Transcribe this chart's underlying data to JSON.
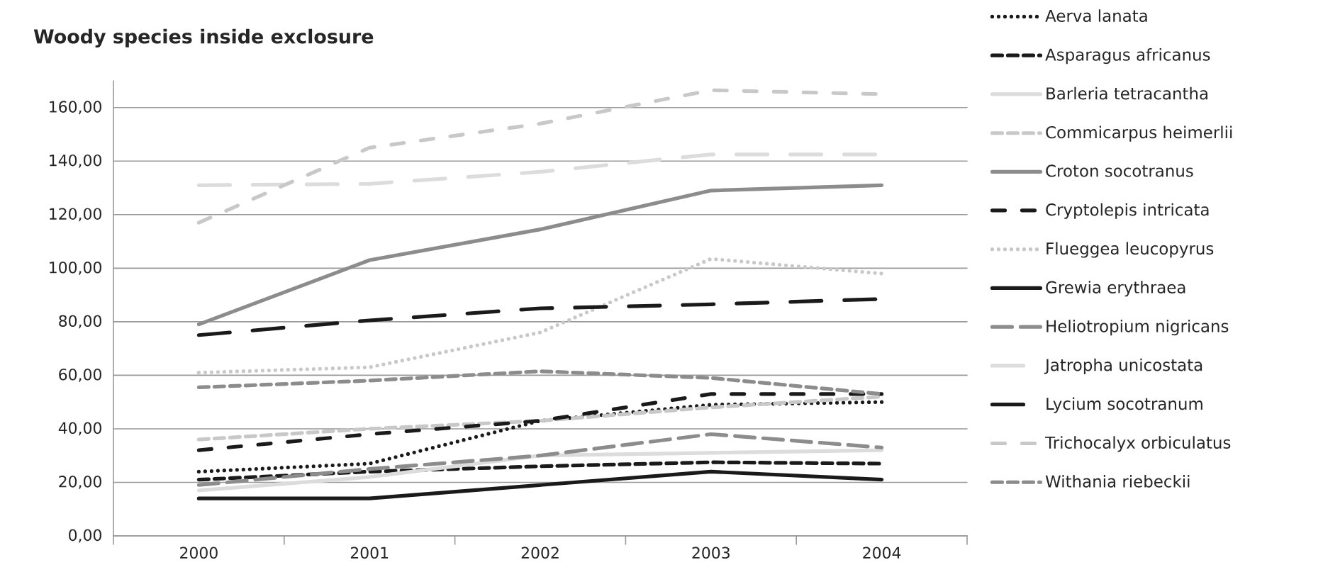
{
  "chart_data": {
    "type": "line",
    "title": "Woody species inside exclosure",
    "categories": [
      "2000",
      "2001",
      "2002",
      "2003",
      "2004"
    ],
    "ylim": [
      0,
      170
    ],
    "yticks": [
      {
        "value": 0,
        "label": "0,00"
      },
      {
        "value": 20,
        "label": "20,00"
      },
      {
        "value": 40,
        "label": "40,00"
      },
      {
        "value": 60,
        "label": "60,00"
      },
      {
        "value": 80,
        "label": "80,00"
      },
      {
        "value": 100,
        "label": "100,00"
      },
      {
        "value": 120,
        "label": "120,00"
      },
      {
        "value": 140,
        "label": "140,00"
      },
      {
        "value": 160,
        "label": "160,00"
      }
    ],
    "grid": "y",
    "legend": "right",
    "marker": "none",
    "series": [
      {
        "name": "Aerva lanata",
        "color": "#1a1a1a",
        "line_style": "dotted",
        "values": [
          24,
          27,
          43,
          49,
          50
        ]
      },
      {
        "name": "Asparagus africanus",
        "color": "#1a1a1a",
        "line_style": "dashed",
        "values": [
          21,
          24,
          26,
          27.5,
          27
        ]
      },
      {
        "name": "Barleria tetracantha",
        "color": "#dcdcdc",
        "line_style": "solid",
        "values": [
          17,
          22,
          30,
          31,
          32
        ]
      },
      {
        "name": "Commicarpus heimerlii",
        "color": "#c8c8c8",
        "line_style": "dashed",
        "values": [
          36,
          40,
          43,
          48,
          52
        ]
      },
      {
        "name": "Croton socotranus",
        "color": "#8c8c8c",
        "line_style": "solid",
        "values": [
          79,
          103,
          114.5,
          129,
          131
        ]
      },
      {
        "name": "Cryptolepis intricata",
        "color": "#1a1a1a",
        "line_style": "dashdot",
        "values": [
          32,
          38,
          43,
          53,
          53
        ]
      },
      {
        "name": "Flueggea leucopyrus",
        "color": "#c8c8c8",
        "line_style": "dotted",
        "values": [
          61,
          63,
          76,
          103.5,
          98
        ]
      },
      {
        "name": "Grewia erythraea",
        "color": "#1a1a1a",
        "line_style": "solid",
        "values": [
          14,
          14,
          19,
          24,
          21
        ]
      },
      {
        "name": "Heliotropium nigricans",
        "color": "#8c8c8c",
        "line_style": "longdash",
        "values": [
          19,
          25,
          30,
          38,
          33
        ]
      },
      {
        "name": "Jatropha unicostata",
        "color": "#dcdcdc",
        "line_style": "longdashdot",
        "values": [
          131,
          131.5,
          136,
          142.5,
          142.5
        ]
      },
      {
        "name": "Lycium socotranum",
        "color": "#1a1a1a",
        "line_style": "longdashdot",
        "values": [
          75,
          80.5,
          85,
          86.5,
          88.5
        ]
      },
      {
        "name": "Trichocalyx orbiculatus",
        "color": "#c8c8c8",
        "line_style": "dashdot",
        "values": [
          117,
          145,
          154,
          166.5,
          165
        ]
      },
      {
        "name": "Withania riebeckii",
        "color": "#8c8c8c",
        "line_style": "dashed",
        "values": [
          55.5,
          58,
          61.5,
          59,
          53
        ]
      }
    ]
  }
}
